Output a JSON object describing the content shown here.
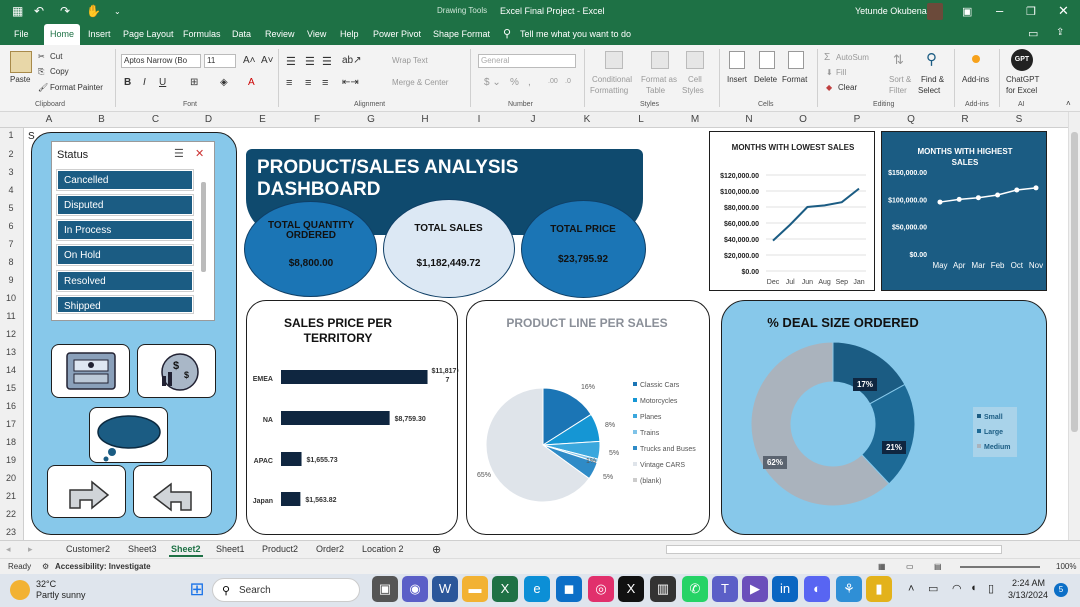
{
  "titlebar": {
    "drawing_tools": "Drawing Tools",
    "title": "Excel Final Project  -  Excel",
    "user": "Yetunde Okubena"
  },
  "menu": [
    "File",
    "Home",
    "Insert",
    "Page Layout",
    "Formulas",
    "Data",
    "Review",
    "View",
    "Help",
    "Power Pivot",
    "Shape Format"
  ],
  "tell_me": "Tell me what you want to do",
  "ribbon": {
    "paste": "Paste",
    "cut": "Cut",
    "copy": "Copy",
    "format_painter": "Format Painter",
    "clipboard": "Clipboard",
    "font_name": "Aptos Narrow (Bo",
    "font_size": "11",
    "font": "Font",
    "wrap_text": "Wrap Text",
    "merge_center": "Merge & Center",
    "alignment": "Alignment",
    "number_format": "General",
    "number": "Number",
    "conditional": "Conditional",
    "formatting": "Formatting",
    "format_as": "Format as",
    "table": "Table",
    "cell": "Cell",
    "styles_lbl": "Styles",
    "styles": "Styles",
    "insert": "Insert",
    "delete": "Delete",
    "format": "Format",
    "cells": "Cells",
    "autosum": "AutoSum",
    "fill": "Fill",
    "clear": "Clear",
    "sort_filter": "Sort &",
    "filter": "Filter",
    "find_select": "Find &",
    "select": "Select",
    "editing": "Editing",
    "addins": "Add-ins",
    "addins_grp": "Add-ins",
    "chatgpt": "ChatGPT",
    "for_excel": "for Excel",
    "ai": "AI",
    "gpt": "GPT"
  },
  "columns": [
    "A",
    "B",
    "C",
    "D",
    "E",
    "F",
    "G",
    "H",
    "I",
    "J",
    "K",
    "L",
    "M",
    "N",
    "O",
    "P",
    "Q",
    "R",
    "S"
  ],
  "rows": [
    "1",
    "2",
    "3",
    "4",
    "5",
    "6",
    "7",
    "8",
    "9",
    "10",
    "11",
    "12",
    "13",
    "14",
    "15",
    "16",
    "17",
    "18",
    "19",
    "20",
    "21",
    "22",
    "23"
  ],
  "cell_a1": "S",
  "status_slicer": {
    "title": "Status",
    "items": [
      "Cancelled",
      "Disputed",
      "In Process",
      "On Hold",
      "Resolved",
      "Shipped"
    ]
  },
  "dashboard": {
    "title": "PRODUCT/SALES ANALYSIS DASHBOARD",
    "kpis": [
      {
        "label": "TOTAL QUANTITY ORDERED",
        "value": "$8,800.00"
      },
      {
        "label": "TOTAL SALES",
        "value": "$1,182,449.72"
      },
      {
        "label": "TOTAL PRICE",
        "value": "$23,795.92"
      }
    ]
  },
  "colors": {
    "excel_green": "#1e7145",
    "navy": "#0f2640",
    "blue": "#1b75b5",
    "light_blue": "#87c8ea",
    "teal_dark": "#1b5c83",
    "pale": "#dce8f4"
  },
  "icons": [
    "cash-icon",
    "money-chart-icon",
    "thought-bubble-icon",
    "turn-right-arrow-icon",
    "turn-left-arrow-icon"
  ],
  "chart_data": [
    {
      "type": "line",
      "title": "MONTHS WITH LOWEST SALES",
      "categories": [
        "Dec",
        "Jul",
        "Jun",
        "Aug",
        "Sep",
        "Jan"
      ],
      "values": [
        38000,
        58000,
        80000,
        82000,
        86000,
        103000
      ],
      "ylim": [
        0,
        120000
      ],
      "yticks": [
        "$120,000.00",
        "$100,000.00",
        "$80,000.00",
        "$60,000.00",
        "$40,000.00",
        "$20,000.00",
        "$0.00"
      ],
      "grid": true
    },
    {
      "type": "line",
      "title": "MONTHS WITH HIGHEST SALES",
      "categories": [
        "May",
        "Apr",
        "Mar",
        "Feb",
        "Oct",
        "Nov"
      ],
      "values": [
        95000,
        100000,
        103000,
        108000,
        117000,
        121000
      ],
      "ylim": [
        0,
        150000
      ],
      "yticks": [
        "$150,000.00",
        "$100,000.00",
        "$50,000.00",
        "$0.00"
      ],
      "grid": false
    },
    {
      "type": "bar",
      "title": "SALES PRICE PER TERRITORY",
      "categories": [
        "EMEA",
        "NA",
        "APAC",
        "Japan"
      ],
      "values": [
        11817.07,
        8759.3,
        1655.73,
        1563.82
      ],
      "labels": [
        "$11,817.0 7",
        "$8,759.30",
        "$1,655.73",
        "$1,563.82"
      ],
      "xlim": [
        0,
        12500
      ]
    },
    {
      "type": "pie",
      "title": "PRODUCT LINE PER SALES",
      "series": [
        {
          "name": "Classic Cars",
          "value": 16
        },
        {
          "name": "Motorcycles",
          "value": 8
        },
        {
          "name": "Planes",
          "value": 5
        },
        {
          "name": "Trains",
          "value": 1
        },
        {
          "name": "Trucks and Buses",
          "value": 5
        },
        {
          "name": "Vintage CARS",
          "value": 65
        },
        {
          "name": "(blank)",
          "value": 0
        }
      ],
      "labels": [
        "16%",
        "8%",
        "5%",
        "1%",
        "5%",
        "65%"
      ],
      "legend": "right"
    },
    {
      "type": "pie",
      "title": "% DEAL SIZE ORDERED",
      "series": [
        {
          "name": "Small",
          "value": 17
        },
        {
          "name": "Large",
          "value": 21
        },
        {
          "name": "Medium",
          "value": 62
        }
      ],
      "labels": [
        "17%",
        "21%",
        "62%"
      ],
      "legend": "right"
    }
  ],
  "sheets": [
    "Customer2",
    "Sheet3",
    "Sheet2",
    "Sheet1",
    "Product2",
    "Order2",
    "Location 2"
  ],
  "active_sheet": "Sheet2",
  "statusbar": {
    "ready": "Ready",
    "accessibility": "Accessibility: Investigate",
    "zoom": "100%"
  },
  "taskbar": {
    "temp": "32°C",
    "weather": "Partly sunny",
    "search": "Search",
    "time": "2:24 AM",
    "date": "3/13/2024",
    "badge": "5"
  }
}
